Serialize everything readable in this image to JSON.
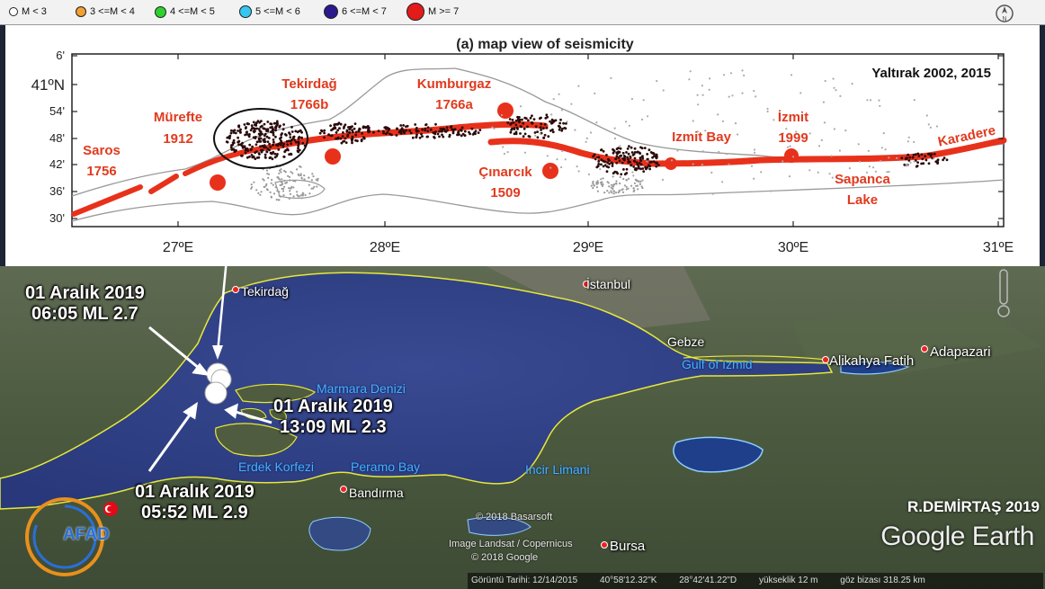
{
  "legend": {
    "items": [
      {
        "label": "M <    3",
        "color": "#ffffff"
      },
      {
        "label": "3 <=M < 4",
        "color": "#f2a033"
      },
      {
        "label": "4 <=M < 5",
        "color": "#2ed12e"
      },
      {
        "label": "5 <=M < 6",
        "color": "#36c6f0"
      },
      {
        "label": "6 <=M < 7",
        "color": "#2a1a8c"
      },
      {
        "label": "M >= 7",
        "color": "#e31b1b"
      }
    ]
  },
  "inset": {
    "title": "(a) map view of seismicity",
    "source": "Yaltırak 2002, 2015",
    "lat_ticks": [
      "6'",
      "41ºN",
      "54'",
      "48'",
      "42'",
      "36'",
      "30'"
    ],
    "lon_ticks": [
      "27ºE",
      "28ºE",
      "29ºE",
      "30ºE",
      "31ºE"
    ],
    "events": [
      {
        "name": "Saros",
        "year": "1756"
      },
      {
        "name": "Mürefte",
        "year": "1912"
      },
      {
        "name": "Tekirdağ",
        "year": "1766b"
      },
      {
        "name": "Kumburgaz",
        "year": "1766a"
      },
      {
        "name": "Çınarcık",
        "year": "1509"
      },
      {
        "name": "İzmit",
        "year": "1999"
      }
    ],
    "place_labels": [
      "Izmit Bay",
      "Karadere",
      "Sapanca",
      "Lake"
    ]
  },
  "satellite": {
    "cities": [
      "Tekirdağ",
      "İstanbul",
      "Gebze",
      "Alikahya Fatih",
      "Adapazari",
      "Bandırma",
      "Bursa"
    ],
    "water": [
      "Marmara Denizi",
      "Gulf of Izmid",
      "Erdek Korfezi",
      "Peramo Bay",
      "Incir Limani"
    ],
    "quakes": [
      {
        "date": "01 Aralık 2019",
        "detail": "06:05 ML 2.7"
      },
      {
        "date": "01 Aralık 2019",
        "detail": "13:09 ML 2.3"
      },
      {
        "date": "01 Aralık 2019",
        "detail": "05:52 ML 2.9"
      }
    ],
    "credits": [
      "© 2018 Basarsoft",
      "Image Landsat / Copernicus",
      "© 2018 Google"
    ],
    "status": {
      "date": "Görüntü Tarihi: 12/14/2015",
      "lat": "40°58'12.32\"K",
      "lon": "28°42'41.22\"D",
      "elevation": "yükseklik   12 m",
      "eye": "göz bizası 318.25 km"
    },
    "author": "R.DEMİRTAŞ 2019",
    "brand": "Google Earth",
    "logo_text": "AFAD"
  }
}
